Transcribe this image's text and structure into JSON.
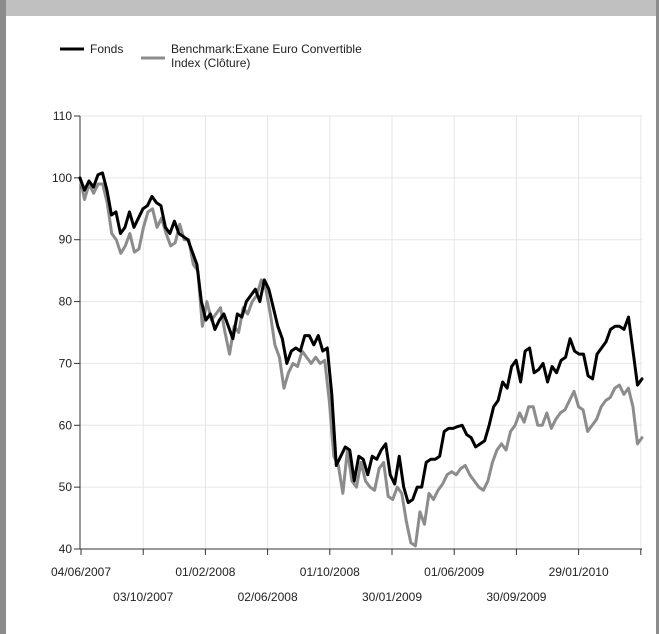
{
  "chart_data": {
    "type": "line",
    "title": "",
    "xlabel": "",
    "ylabel": "",
    "ylim": [
      40,
      110
    ],
    "y_ticks": [
      40,
      50,
      60,
      70,
      80,
      90,
      100,
      110
    ],
    "grid": true,
    "legend_position": "top-left",
    "x_tick_labels": [
      "04/06/2007",
      "03/10/2007",
      "01/02/2008",
      "02/06/2008",
      "01/10/2008",
      "30/01/2009",
      "01/06/2009",
      "30/09/2009",
      "29/01/2010"
    ],
    "series": [
      {
        "name": "Fonds",
        "color": "#000000",
        "values": [
          100,
          98,
          99.5,
          98.5,
          100.5,
          100.8,
          98,
          94,
          94.5,
          91,
          92,
          94.5,
          92,
          93.5,
          95,
          95.5,
          97,
          96,
          95.5,
          92,
          91,
          93,
          91,
          90.5,
          90,
          88,
          86,
          80,
          77,
          78,
          75.5,
          77,
          78,
          76,
          74,
          78,
          77.5,
          80,
          81,
          82,
          80,
          83.5,
          82,
          79,
          76,
          74,
          70,
          72,
          72.5,
          72,
          74.5,
          74.5,
          73,
          74.5,
          72,
          72.5,
          65,
          53.5,
          55,
          56.5,
          56,
          51,
          55,
          54.5,
          52,
          55,
          54.5,
          56,
          57,
          52,
          50.5,
          55,
          50,
          47.5,
          48,
          50,
          50,
          54,
          54.5,
          54.5,
          55,
          59,
          59.5,
          59.5,
          59.8,
          60,
          58.5,
          58,
          56.5,
          57,
          57.5,
          60,
          63,
          64,
          67,
          66,
          69.5,
          70.5,
          67,
          72,
          72.5,
          68.5,
          69,
          70,
          67,
          69.5,
          68.5,
          70.5,
          71,
          74,
          72,
          71.5,
          71.5,
          68,
          67.5,
          71.5,
          72.5,
          73.5,
          75.5,
          76,
          76,
          75.5,
          77.5,
          72,
          66.5,
          67.5
        ]
      },
      {
        "name": "Benchmark:Exane Euro Convertible Index (Clôture)",
        "color": "#8c8c8c",
        "values": [
          100,
          96.5,
          99,
          97.5,
          99,
          99,
          96,
          91,
          90,
          87.8,
          89,
          91,
          88,
          88.5,
          92,
          94.5,
          95,
          92,
          93.5,
          91,
          89,
          89.5,
          92.5,
          90,
          90,
          86,
          85,
          76,
          80,
          77,
          78,
          79,
          75,
          71.5,
          76,
          75,
          79,
          78,
          80,
          81,
          83.5,
          82,
          78,
          73,
          71,
          66,
          68.5,
          70,
          69.5,
          72,
          71,
          70,
          71,
          70,
          70.5,
          64,
          55,
          53.5,
          49,
          56,
          51,
          50,
          54,
          51,
          50,
          49.5,
          53,
          54,
          48.5,
          48,
          50,
          49,
          44.5,
          41,
          40.5,
          46,
          44,
          49,
          48,
          49.5,
          50.5,
          52,
          52.5,
          52,
          53,
          53.5,
          52,
          51,
          50,
          49.5,
          51,
          54,
          56,
          57,
          56,
          59,
          60,
          62,
          60.5,
          63,
          63,
          60,
          60,
          62,
          59.5,
          61,
          62,
          62.5,
          64,
          65.5,
          63,
          62.5,
          59,
          60,
          61,
          63,
          64,
          64.5,
          66,
          66.5,
          65,
          66,
          63,
          57,
          58
        ]
      }
    ]
  }
}
